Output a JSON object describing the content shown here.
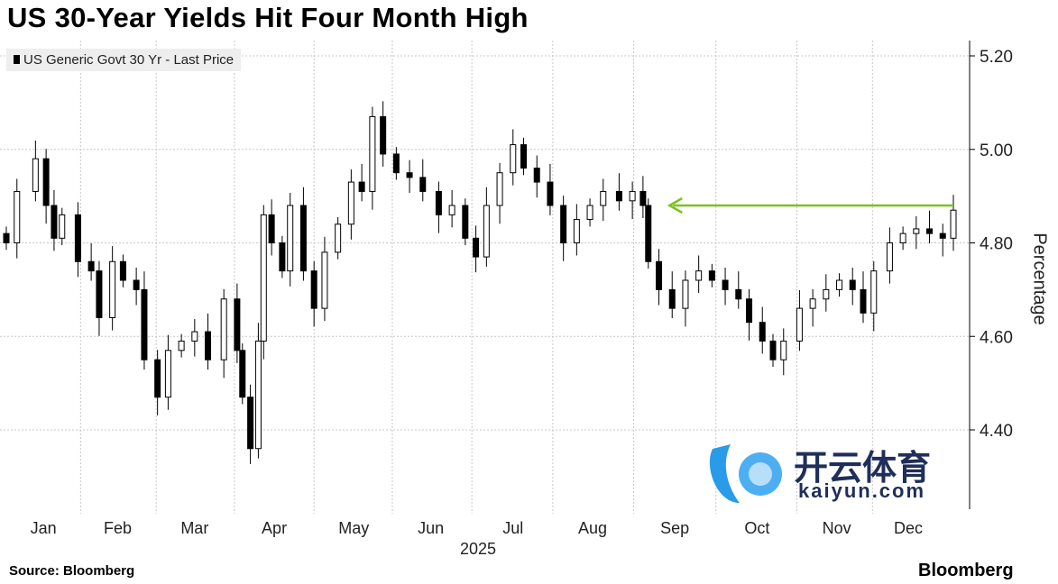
{
  "chart_data": {
    "type": "candlestick",
    "title": "US 30-Year Yields Hit Four Month High",
    "legend": "US Generic Govt 30 Yr - Last Price",
    "ylabel": "Percentage",
    "xlabel": "2025",
    "ylim": [
      4.25,
      5.25
    ],
    "yticks": [
      "4.40",
      "4.60",
      "4.80",
      "5.00",
      "5.20"
    ],
    "ytick_values": [
      4.4,
      4.6,
      4.8,
      5.0,
      5.2
    ],
    "months": [
      "Jan",
      "Feb",
      "Mar",
      "Apr",
      "May",
      "Jun",
      "Jul",
      "Aug",
      "Sep",
      "Oct",
      "Nov",
      "Dec"
    ],
    "month_days": [
      14,
      42,
      71,
      101,
      131,
      160,
      191,
      221,
      252,
      283,
      313,
      340
    ],
    "day_range": [
      0,
      357
    ],
    "days": [
      0,
      4,
      11,
      15,
      18,
      21,
      27,
      32,
      35,
      40,
      44,
      49,
      52,
      57,
      61,
      66,
      71,
      76,
      82,
      87,
      89,
      92,
      95,
      97,
      100,
      104,
      107,
      112,
      116,
      120,
      125,
      130,
      134,
      138,
      142,
      147,
      152,
      157,
      163,
      168,
      173,
      177,
      181,
      186,
      191,
      195,
      200,
      205,
      210,
      215,
      220,
      225,
      231,
      236,
      240,
      242,
      246,
      251,
      256,
      261,
      266,
      271,
      276,
      280,
      285,
      289,
      293,
      299,
      304,
      309,
      314,
      319,
      323,
      327,
      333,
      338,
      343,
      348,
      353,
      357
    ],
    "closes": [
      4.8,
      4.91,
      4.98,
      4.88,
      4.81,
      4.86,
      4.76,
      4.74,
      4.64,
      4.76,
      4.72,
      4.7,
      4.55,
      4.47,
      4.57,
      4.59,
      4.61,
      4.55,
      4.68,
      4.57,
      4.47,
      4.36,
      4.59,
      4.86,
      4.8,
      4.74,
      4.88,
      4.74,
      4.66,
      4.78,
      4.84,
      4.93,
      4.91,
      5.07,
      4.99,
      4.95,
      4.94,
      4.91,
      4.86,
      4.88,
      4.81,
      4.77,
      4.88,
      4.95,
      5.01,
      4.96,
      4.93,
      4.88,
      4.8,
      4.85,
      4.88,
      4.91,
      4.89,
      4.91,
      4.88,
      4.76,
      4.7,
      4.66,
      4.72,
      4.74,
      4.72,
      4.7,
      4.68,
      4.63,
      4.59,
      4.55,
      4.59,
      4.66,
      4.68,
      4.7,
      4.72,
      4.7,
      4.65,
      4.74,
      4.8,
      4.82,
      4.83,
      4.82,
      4.81,
      4.87
    ],
    "annotation": {
      "type": "arrow",
      "from_day": 357,
      "to_day": 250,
      "value": 4.88,
      "color": "#7dc21e"
    },
    "grid": true,
    "legend_position": "top-left"
  },
  "footer": {
    "source": "Source: Bloomberg",
    "brand": "Bloomberg"
  },
  "watermark": {
    "cn": "开云体育",
    "en": "kaiyun.com"
  }
}
